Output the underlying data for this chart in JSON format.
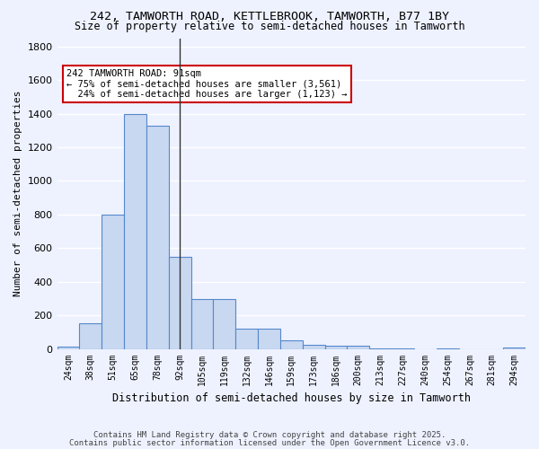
{
  "title1": "242, TAMWORTH ROAD, KETTLEBROOK, TAMWORTH, B77 1BY",
  "title2": "Size of property relative to semi-detached houses in Tamworth",
  "xlabel": "Distribution of semi-detached houses by size in Tamworth",
  "ylabel": "Number of semi-detached properties",
  "categories": [
    "24sqm",
    "38sqm",
    "51sqm",
    "65sqm",
    "78sqm",
    "92sqm",
    "105sqm",
    "119sqm",
    "132sqm",
    "146sqm",
    "159sqm",
    "173sqm",
    "186sqm",
    "200sqm",
    "213sqm",
    "227sqm",
    "240sqm",
    "254sqm",
    "267sqm",
    "281sqm",
    "294sqm"
  ],
  "values": [
    15,
    150,
    800,
    1400,
    1330,
    550,
    295,
    295,
    120,
    120,
    50,
    25,
    20,
    20,
    5,
    5,
    0,
    5,
    0,
    0,
    10
  ],
  "bar_color": "#c8d8f0",
  "bar_edge_color": "#5588cc",
  "background_color": "#eef2ff",
  "grid_color": "#ffffff",
  "property_value": 91,
  "property_bin_index": 5,
  "annotation_text": "242 TAMWORTH ROAD: 91sqm\n← 75% of semi-detached houses are smaller (3,561)\n  24% of semi-detached houses are larger (1,123) →",
  "annotation_box_color": "#ffffff",
  "annotation_box_edge": "#cc0000",
  "footer1": "Contains HM Land Registry data © Crown copyright and database right 2025.",
  "footer2": "Contains public sector information licensed under the Open Government Licence v3.0.",
  "ylim": [
    0,
    1850
  ],
  "yticks": [
    0,
    200,
    400,
    600,
    800,
    1000,
    1200,
    1400,
    1600,
    1800
  ]
}
